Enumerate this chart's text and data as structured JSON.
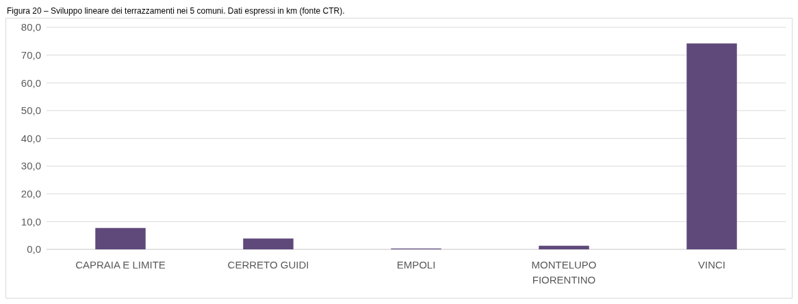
{
  "chart_data": {
    "type": "bar",
    "title": "Figura 20 – Sviluppo lineare dei terrazzamenti nei 5 comuni. Dati espressi in km (fonte CTR).",
    "categories": [
      "CAPRAIA E LIMITE",
      "CERRETO GUIDI",
      "EMPOLI",
      "MONTELUPO FIORENTINO",
      "VINCI"
    ],
    "values": [
      7.7,
      3.9,
      0.3,
      1.3,
      74.2
    ],
    "color": "#5f497a",
    "ylim": [
      0,
      80
    ],
    "yticks": [
      {
        "value": 0,
        "label": "0,0"
      },
      {
        "value": 10,
        "label": "10,0"
      },
      {
        "value": 20,
        "label": "20,0"
      },
      {
        "value": 30,
        "label": "30,0"
      },
      {
        "value": 40,
        "label": "40,0"
      },
      {
        "value": 50,
        "label": "50,0"
      },
      {
        "value": 60,
        "label": "60,0"
      },
      {
        "value": 70,
        "label": "70,0"
      },
      {
        "value": 80,
        "label": "80,0"
      }
    ],
    "grid": "y"
  }
}
